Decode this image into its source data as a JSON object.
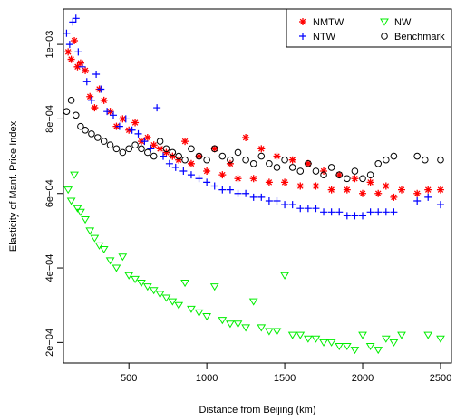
{
  "chart_data": {
    "type": "scatter",
    "xlabel": "Distance from Beijing (km)",
    "ylabel": "Elasticity of Manf. Price Index",
    "xlim": [
      80,
      2570
    ],
    "ylim": [
      0.000145,
      0.001095
    ],
    "x_ticks": [
      500,
      1000,
      1500,
      2000,
      2500
    ],
    "x_tick_labels": [
      "500",
      "1000",
      "1500",
      "2000",
      "2500"
    ],
    "y_ticks": [
      0.0002,
      0.0004,
      0.0006,
      0.0008,
      0.001
    ],
    "y_tick_labels": [
      "2e−04",
      "4e−04",
      "6e−04",
      "8e−04",
      "1e−03"
    ],
    "grid": false,
    "legend_position": "top-right",
    "series": [
      {
        "name": "NMTW",
        "marker": "asterisk",
        "color": "#ff0000",
        "x": [
          110,
          130,
          150,
          170,
          190,
          220,
          250,
          280,
          310,
          340,
          380,
          420,
          460,
          500,
          540,
          580,
          620,
          660,
          700,
          740,
          780,
          820,
          860,
          900,
          950,
          1000,
          1050,
          1100,
          1150,
          1200,
          1250,
          1300,
          1350,
          1400,
          1450,
          1500,
          1550,
          1600,
          1650,
          1700,
          1750,
          1800,
          1850,
          1900,
          1950,
          2000,
          2050,
          2100,
          2150,
          2200,
          2250,
          2350,
          2420,
          2500
        ],
        "y": [
          0.00098,
          0.00096,
          0.00101,
          0.00094,
          0.00095,
          0.00093,
          0.00086,
          0.00083,
          0.00088,
          0.00085,
          0.00082,
          0.00078,
          0.0008,
          0.00077,
          0.00079,
          0.00074,
          0.00075,
          0.00073,
          0.00072,
          0.00071,
          0.0007,
          0.00069,
          0.00074,
          0.00068,
          0.0007,
          0.00066,
          0.00072,
          0.00065,
          0.00068,
          0.00064,
          0.00075,
          0.00064,
          0.00072,
          0.00063,
          0.0007,
          0.00063,
          0.00069,
          0.00062,
          0.00068,
          0.00062,
          0.00066,
          0.00061,
          0.00065,
          0.00061,
          0.00064,
          0.0006,
          0.00063,
          0.0006,
          0.00062,
          0.00059,
          0.00061,
          0.0006,
          0.00061,
          0.00061
        ]
      },
      {
        "name": "NTW",
        "marker": "plus",
        "color": "#0000ff",
        "x": [
          100,
          120,
          140,
          160,
          175,
          200,
          230,
          260,
          290,
          320,
          360,
          400,
          440,
          480,
          520,
          560,
          600,
          640,
          680,
          720,
          760,
          800,
          850,
          900,
          950,
          1000,
          1050,
          1100,
          1150,
          1200,
          1250,
          1300,
          1350,
          1400,
          1450,
          1500,
          1550,
          1600,
          1650,
          1700,
          1750,
          1800,
          1850,
          1900,
          1950,
          2000,
          2050,
          2100,
          2150,
          2200,
          2350,
          2420,
          2500
        ],
        "y": [
          0.00103,
          0.001,
          0.00106,
          0.00107,
          0.00098,
          0.00094,
          0.0009,
          0.00085,
          0.00092,
          0.00088,
          0.00082,
          0.00081,
          0.00078,
          0.0008,
          0.00077,
          0.00076,
          0.00074,
          0.00072,
          0.00083,
          0.0007,
          0.00068,
          0.00067,
          0.00066,
          0.00065,
          0.00064,
          0.00063,
          0.00062,
          0.00061,
          0.00061,
          0.0006,
          0.0006,
          0.00059,
          0.00059,
          0.00058,
          0.00058,
          0.00057,
          0.00057,
          0.00056,
          0.00056,
          0.00056,
          0.00055,
          0.00055,
          0.00055,
          0.00054,
          0.00054,
          0.00054,
          0.00055,
          0.00055,
          0.00055,
          0.00055,
          0.00058,
          0.00059,
          0.00057
        ]
      },
      {
        "name": "NW",
        "marker": "triangle-down",
        "color": "#00ee00",
        "x": [
          110,
          130,
          150,
          170,
          190,
          220,
          250,
          280,
          310,
          340,
          380,
          420,
          460,
          500,
          540,
          580,
          620,
          660,
          700,
          740,
          780,
          820,
          860,
          900,
          950,
          1000,
          1050,
          1100,
          1150,
          1200,
          1250,
          1300,
          1350,
          1400,
          1450,
          1500,
          1550,
          1600,
          1650,
          1700,
          1750,
          1800,
          1850,
          1900,
          1950,
          2000,
          2050,
          2100,
          2150,
          2200,
          2250,
          2420,
          2500
        ],
        "y": [
          0.00061,
          0.00058,
          0.00065,
          0.00056,
          0.00055,
          0.00053,
          0.0005,
          0.00048,
          0.00046,
          0.00045,
          0.00042,
          0.0004,
          0.00043,
          0.00038,
          0.00037,
          0.00036,
          0.00035,
          0.00034,
          0.00033,
          0.00032,
          0.00031,
          0.0003,
          0.00036,
          0.00029,
          0.00028,
          0.00027,
          0.00035,
          0.00026,
          0.00025,
          0.00025,
          0.00024,
          0.00031,
          0.00024,
          0.00023,
          0.00023,
          0.00038,
          0.00022,
          0.00022,
          0.00021,
          0.00021,
          0.0002,
          0.0002,
          0.00019,
          0.00019,
          0.00018,
          0.00022,
          0.00019,
          0.00018,
          0.00021,
          0.0002,
          0.00022,
          0.00022,
          0.00021
        ]
      },
      {
        "name": "Benchmark",
        "marker": "circle",
        "color": "#000000",
        "x": [
          100,
          130,
          160,
          190,
          220,
          260,
          300,
          340,
          380,
          420,
          460,
          500,
          540,
          580,
          620,
          660,
          700,
          740,
          780,
          820,
          860,
          900,
          950,
          1000,
          1050,
          1100,
          1150,
          1200,
          1250,
          1300,
          1350,
          1400,
          1450,
          1500,
          1550,
          1600,
          1650,
          1700,
          1750,
          1800,
          1850,
          1900,
          1950,
          2000,
          2050,
          2100,
          2150,
          2200,
          2350,
          2400,
          2500
        ],
        "y": [
          0.00082,
          0.00085,
          0.00081,
          0.00078,
          0.00077,
          0.00076,
          0.00075,
          0.00074,
          0.00073,
          0.00072,
          0.00071,
          0.00072,
          0.00073,
          0.00072,
          0.00071,
          0.0007,
          0.00074,
          0.00072,
          0.00071,
          0.0007,
          0.00069,
          0.00072,
          0.0007,
          0.00069,
          0.00072,
          0.0007,
          0.00069,
          0.00071,
          0.00069,
          0.00068,
          0.0007,
          0.00068,
          0.00067,
          0.00069,
          0.00067,
          0.00066,
          0.00068,
          0.00066,
          0.00065,
          0.00067,
          0.00065,
          0.00064,
          0.00066,
          0.00064,
          0.00065,
          0.00068,
          0.00069,
          0.0007,
          0.0007,
          0.00069,
          0.00069
        ]
      }
    ]
  }
}
